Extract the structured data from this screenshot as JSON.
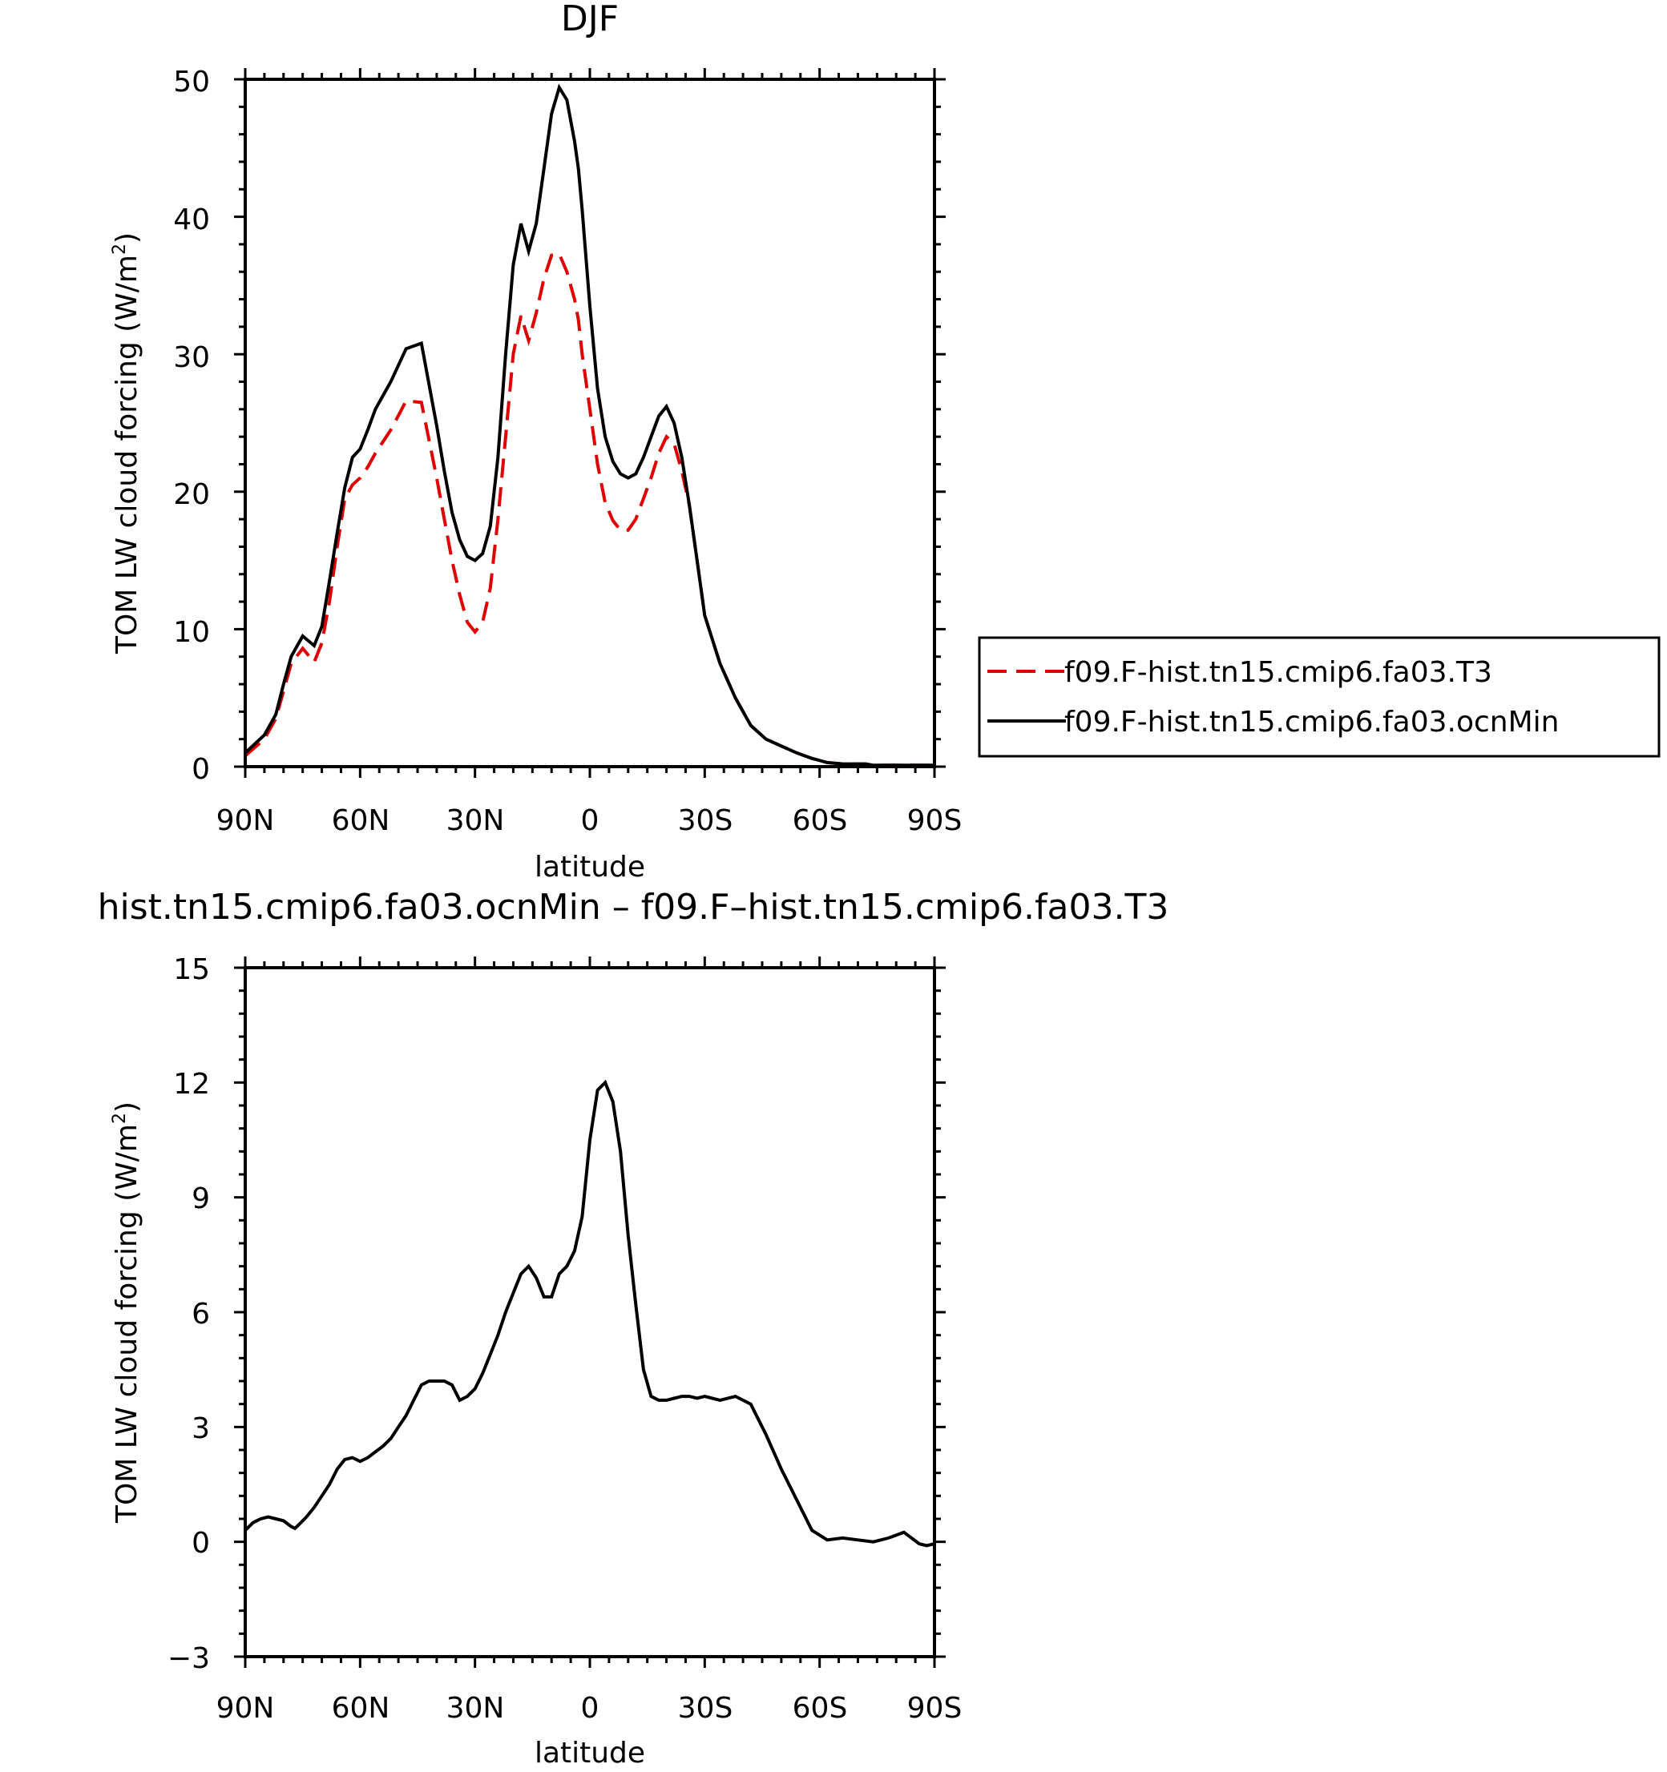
{
  "chart_data": [
    {
      "type": "line",
      "title": "DJF",
      "xlabel": "latitude",
      "ylabel": "TOM LW cloud forcing (W/m²)",
      "ylabel_main": "TOM LW cloud forcing (W/m",
      "ylabel_sup": "2",
      "ylabel_close": ")",
      "xlim": [
        90,
        -90
      ],
      "ylim": [
        0,
        50
      ],
      "xticks": [
        90,
        60,
        30,
        0,
        -30,
        -60,
        -90
      ],
      "xtick_labels": [
        "90N",
        "60N",
        "30N",
        "0",
        "30S",
        "60S",
        "90S"
      ],
      "yticks": [
        0,
        10,
        20,
        30,
        40,
        50
      ],
      "ytick_labels": [
        "0",
        "10",
        "20",
        "30",
        "40",
        "50"
      ],
      "legend_position": "right",
      "grid": false,
      "series": [
        {
          "name": "f09.F-hist.tn15.cmip6.fa03.T3",
          "color": "#e00000",
          "dash": "dashed",
          "x": [
            90,
            85,
            82,
            80,
            78,
            75,
            72,
            70,
            68,
            66,
            64,
            62,
            60,
            58,
            56,
            52,
            48,
            44,
            40,
            38,
            36,
            34,
            32,
            30,
            28,
            26,
            24,
            22,
            20,
            18,
            16,
            14,
            12,
            10,
            8,
            6,
            5,
            4,
            3,
            2,
            0,
            -2,
            -4,
            -6,
            -8,
            -10,
            -12,
            -14,
            -16,
            -18,
            -20,
            -22,
            -24,
            -26,
            -28,
            -30,
            -34,
            -38,
            -42,
            -46,
            -50,
            -54,
            -58,
            -62,
            -66,
            -70,
            -72,
            -74,
            -76,
            -78,
            -80,
            -82,
            -84,
            -86,
            -88,
            -90
          ],
          "y": [
            0.8,
            2.0,
            3.5,
            5.5,
            7.5,
            8.6,
            7.6,
            9.0,
            12.0,
            16.0,
            19.5,
            20.5,
            21.0,
            21.8,
            22.8,
            24.5,
            26.6,
            26.5,
            21.0,
            18.0,
            15.0,
            12.5,
            10.5,
            9.8,
            10.5,
            13.0,
            18.0,
            24.0,
            30.0,
            32.8,
            31.0,
            33.0,
            35.5,
            37.2,
            37.3,
            36.0,
            35.0,
            34.0,
            32.5,
            30.0,
            26.0,
            22.0,
            19.2,
            17.9,
            17.2,
            17.2,
            18.0,
            19.5,
            21.0,
            22.8,
            24.0,
            23.5,
            21.5,
            19.0,
            15.0,
            11.0,
            7.5,
            5.0,
            3.0,
            2.0,
            1.5,
            1.0,
            0.6,
            0.3,
            0.2,
            0.2,
            0.2,
            0.1,
            0.1,
            0.1,
            0.1,
            0.1,
            0.1,
            0.1,
            0.1,
            0.1
          ]
        },
        {
          "name": "f09.F-hist.tn15.cmip6.fa03.ocnMin",
          "color": "#000000",
          "dash": "solid",
          "x": [
            90,
            85,
            82,
            80,
            78,
            75,
            72,
            70,
            68,
            66,
            64,
            62,
            60,
            58,
            56,
            52,
            48,
            44,
            40,
            38,
            36,
            34,
            32,
            30,
            28,
            26,
            24,
            22,
            20,
            18,
            16,
            14,
            12,
            10,
            8,
            6,
            5,
            4,
            3,
            2,
            0,
            -2,
            -4,
            -6,
            -8,
            -10,
            -12,
            -14,
            -16,
            -18,
            -20,
            -22,
            -24,
            -26,
            -28,
            -30,
            -34,
            -38,
            -42,
            -46,
            -50,
            -54,
            -58,
            -62,
            -66,
            -70,
            -72,
            -74,
            -76,
            -78,
            -80,
            -82,
            -84,
            -86,
            -88,
            -90
          ],
          "y": [
            1.0,
            2.3,
            3.8,
            6.0,
            8.0,
            9.5,
            8.8,
            10.2,
            13.5,
            17.0,
            20.3,
            22.5,
            23.1,
            24.5,
            26.0,
            28.0,
            30.4,
            30.8,
            24.8,
            21.5,
            18.5,
            16.5,
            15.3,
            15.0,
            15.5,
            17.5,
            22.5,
            30.0,
            36.5,
            39.5,
            37.5,
            39.5,
            43.5,
            47.5,
            49.4,
            48.5,
            47.0,
            45.5,
            43.5,
            40.5,
            33.5,
            27.5,
            24.0,
            22.2,
            21.3,
            21.0,
            21.3,
            22.5,
            24.0,
            25.5,
            26.2,
            25.0,
            22.5,
            19.0,
            15.0,
            11.0,
            7.5,
            5.0,
            3.0,
            2.0,
            1.5,
            1.0,
            0.6,
            0.3,
            0.2,
            0.2,
            0.2,
            0.1,
            0.1,
            0.1,
            0.1,
            0.1,
            0.1,
            0.1,
            0.1,
            0.1
          ]
        }
      ]
    },
    {
      "type": "line",
      "title": "hist.tn15.cmip6.fa03.ocnMin – f09.F–hist.tn15.cmip6.fa03.T3",
      "xlabel": "latitude",
      "ylabel": "TOM LW cloud forcing (W/m²)",
      "ylabel_main": "TOM LW cloud forcing (W/m",
      "ylabel_sup": "2",
      "ylabel_close": ")",
      "xlim": [
        90,
        -90
      ],
      "ylim": [
        -3,
        15
      ],
      "xticks": [
        90,
        60,
        30,
        0,
        -30,
        -60,
        -90
      ],
      "xtick_labels": [
        "90N",
        "60N",
        "30N",
        "0",
        "30S",
        "60S",
        "90S"
      ],
      "yticks": [
        -3,
        0,
        3,
        6,
        9,
        12,
        15
      ],
      "ytick_labels": [
        "−3",
        "0",
        "3",
        "6",
        "9",
        "12",
        "15"
      ],
      "grid": false,
      "series": [
        {
          "color": "#000000",
          "dash": "solid",
          "x": [
            90,
            88,
            86,
            84,
            82,
            80,
            78,
            77,
            76,
            74,
            72,
            70,
            68,
            66,
            64,
            62,
            60,
            58,
            56,
            54,
            52,
            50,
            48,
            46,
            44,
            42,
            40,
            38,
            36,
            34,
            32,
            30,
            28,
            26,
            24,
            22,
            20,
            18,
            16,
            14,
            12,
            10,
            8,
            6,
            4,
            2,
            0,
            -2,
            -4,
            -6,
            -8,
            -10,
            -12,
            -14,
            -16,
            -18,
            -20,
            -22,
            -24,
            -26,
            -28,
            -30,
            -34,
            -38,
            -42,
            -46,
            -50,
            -54,
            -58,
            -62,
            -66,
            -70,
            -74,
            -78,
            -82,
            -86,
            -88,
            -90
          ],
          "y": [
            0.3,
            0.5,
            0.6,
            0.65,
            0.6,
            0.55,
            0.4,
            0.35,
            0.45,
            0.65,
            0.9,
            1.2,
            1.5,
            1.9,
            2.15,
            2.2,
            2.1,
            2.2,
            2.35,
            2.5,
            2.7,
            3.0,
            3.3,
            3.7,
            4.1,
            4.2,
            4.2,
            4.2,
            4.1,
            3.7,
            3.8,
            4.0,
            4.4,
            4.9,
            5.4,
            6.0,
            6.5,
            7.0,
            7.2,
            6.9,
            6.4,
            6.4,
            7.0,
            7.2,
            7.6,
            8.5,
            10.5,
            11.8,
            12.0,
            11.5,
            10.2,
            8.0,
            6.2,
            4.5,
            3.8,
            3.7,
            3.7,
            3.75,
            3.8,
            3.8,
            3.75,
            3.8,
            3.7,
            3.8,
            3.6,
            2.8,
            1.9,
            1.1,
            0.3,
            0.05,
            0.1,
            0.05,
            0.0,
            0.1,
            0.25,
            -0.05,
            -0.1,
            -0.05
          ]
        }
      ]
    }
  ]
}
